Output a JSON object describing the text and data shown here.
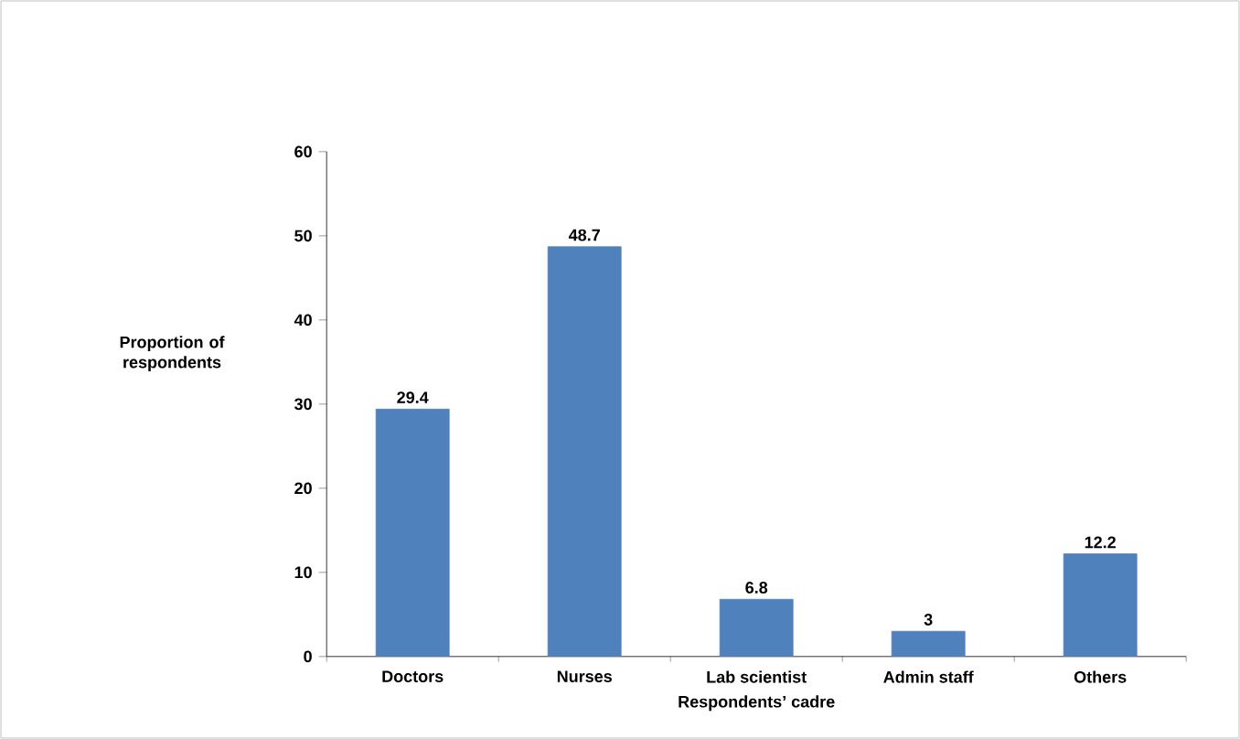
{
  "chart_data": {
    "type": "bar",
    "xlabel": "Respondents’ cadre",
    "ylabel": "Proportion of respondents",
    "categories": [
      "Doctors",
      "Nurses",
      "Lab scientist",
      "Admin staff",
      "Others"
    ],
    "values": [
      29.4,
      48.7,
      6.8,
      3,
      12.2
    ],
    "color": "#4f81bd",
    "ylim": [
      0,
      60
    ],
    "yticks": [
      0,
      10,
      20,
      30,
      40,
      50,
      60
    ],
    "data_labels": true,
    "grid": false
  }
}
